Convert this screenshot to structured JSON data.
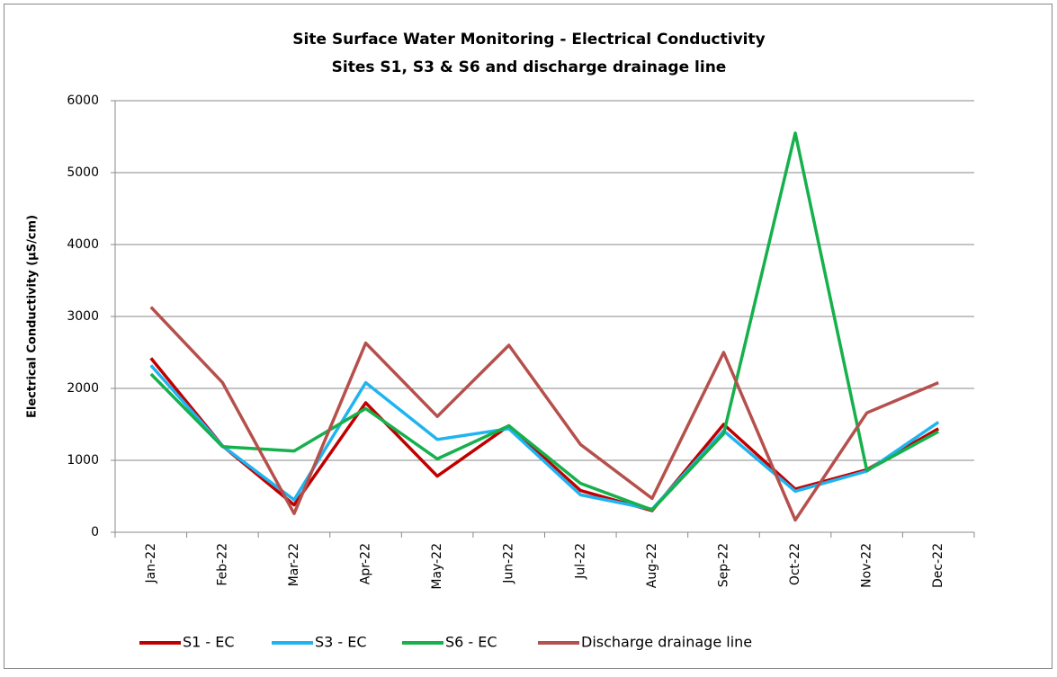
{
  "chart_data": {
    "type": "line",
    "title": "Site Surface Water Monitoring - Electrical Conductivity",
    "subtitle": "Sites S1, S3 & S6 and discharge drainage line",
    "y_label": "Electrical Conductivity (µS/cm)",
    "categories": [
      "Jan-22",
      "Feb-22",
      "Mar-22",
      "Apr-22",
      "May-22",
      "Jun-22",
      "Jul-22",
      "Aug-22",
      "Sep-22",
      "Oct-22",
      "Nov-22",
      "Dec-22"
    ],
    "series": [
      {
        "name": "S1 - EC",
        "color": "#c00000",
        "values": [
          2420,
          1200,
          380,
          1800,
          780,
          1480,
          580,
          300,
          1500,
          600,
          870,
          1440
        ]
      },
      {
        "name": "S3 - EC",
        "color": "#1fb4f0",
        "values": [
          2320,
          1200,
          450,
          2080,
          1290,
          1440,
          520,
          320,
          1410,
          570,
          850,
          1530
        ]
      },
      {
        "name": "S6 - EC",
        "color": "#16b04c",
        "values": [
          2200,
          1190,
          1130,
          1720,
          1020,
          1480,
          680,
          310,
          1370,
          5550,
          860,
          1400
        ]
      },
      {
        "name": "Discharge drainage line",
        "color": "#b5504c",
        "values": [
          3130,
          2080,
          260,
          2630,
          1610,
          2600,
          1220,
          470,
          2500,
          170,
          1660,
          2080
        ]
      }
    ],
    "ylim": [
      0,
      6000
    ],
    "yticks": [
      0,
      1000,
      2000,
      3000,
      4000,
      5000,
      6000
    ],
    "grid": true,
    "legend": "bottom"
  }
}
